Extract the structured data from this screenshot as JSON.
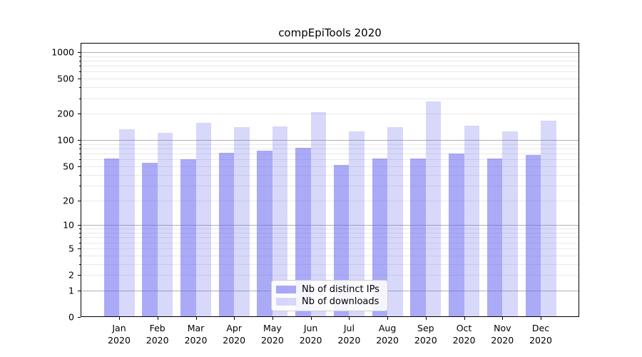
{
  "chart_data": {
    "type": "bar",
    "title": "compEpiTools 2020",
    "categories": [
      "Jan",
      "Feb",
      "Mar",
      "Apr",
      "May",
      "Jun",
      "Jul",
      "Aug",
      "Sep",
      "Oct",
      "Nov",
      "Dec"
    ],
    "category_year": "2020",
    "series": [
      {
        "name": "Nb of distinct IPs",
        "color": "rgba(100,100,240,0.55)",
        "values": [
          62,
          55,
          60,
          72,
          75,
          81,
          52,
          61,
          62,
          70,
          61,
          68
        ]
      },
      {
        "name": "Nb of downloads",
        "color": "rgba(100,100,240,0.25)",
        "values": [
          134,
          122,
          158,
          140,
          144,
          208,
          125,
          140,
          278,
          147,
          125,
          167
        ]
      }
    ],
    "yscale": "log1p",
    "ylim": [
      0,
      1273
    ],
    "ytick_labels": [
      0,
      1,
      2,
      5,
      10,
      20,
      50,
      100,
      200,
      500,
      1000
    ],
    "major_gridline_values": [
      1,
      10,
      100,
      1000
    ],
    "grid": "on",
    "legend_position": "lower center",
    "colors": {
      "major_grid": "#b0b0b0",
      "minor_grid": "#e9e9ec",
      "axis": "#000000",
      "text": "#000000"
    }
  }
}
